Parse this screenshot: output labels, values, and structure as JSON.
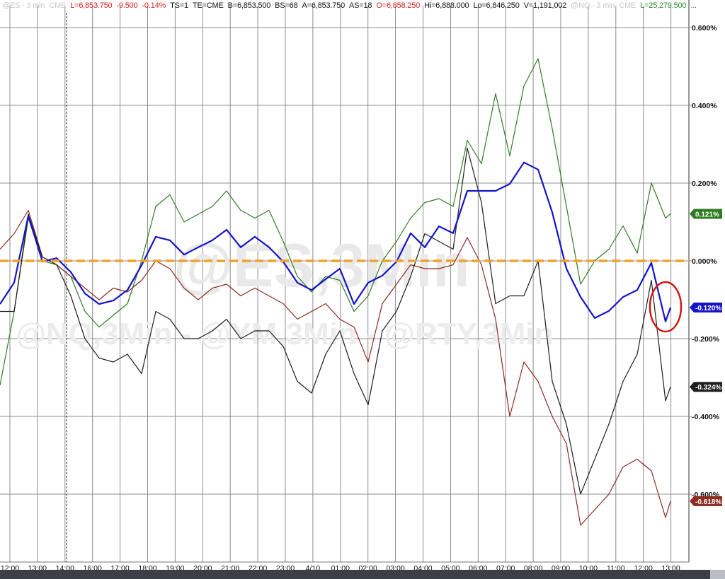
{
  "header": {
    "es_symbol": "@ES - 3 min",
    "es_exchange": "CME",
    "last": "L=6,853.750",
    "change": "-9.500",
    "change_pct": "-0.14%",
    "ts": "TS=1",
    "te": "TE=CME",
    "bid": "B=6,853.500",
    "bid_size": "BS=68",
    "ask": "A=6,853.750",
    "ask_size": "AS=18",
    "open": "O=6,858.250",
    "high": "Hi=6,888.000",
    "low": "Lo=6,846.250",
    "volume": "V=1,191,002",
    "nq_symbol": "@NQ - 3 min",
    "nq_exchange": "CME",
    "nq_last": "L=25,279.500",
    "more": "..."
  },
  "watermark": {
    "main": "@ES,3Min",
    "sub": "@NQ,3Min - @YM,3Min - @RTY,3Min"
  },
  "chart_data": {
    "type": "line",
    "x_tick_labels": [
      "12:00",
      "13:00",
      "14:00",
      "16:00",
      "17:00",
      "18:00",
      "19:00",
      "20:00",
      "21:00",
      "22:00",
      "23:00",
      "4/10",
      "01:00",
      "02:00",
      "03:00",
      "04:00",
      "05:00",
      "06:00",
      "07:00",
      "08:00",
      "09:00",
      "10:00",
      "11:00",
      "12:00",
      "13:00"
    ],
    "y_tick_labels": [
      "0.600%",
      "0.400%",
      "0.200%",
      "0.000%",
      "-0.200%",
      "-0.400%",
      "-0.600%"
    ],
    "y_ticks": [
      0.6,
      0.4,
      0.2,
      0,
      -0.2,
      -0.4,
      -0.6
    ],
    "ylim": [
      -0.72,
      0.66
    ],
    "y_unit": "%",
    "grid": true,
    "reference_line": {
      "value": 0,
      "color": "#f0a22a",
      "style": "dashed"
    },
    "session_marker_label": "14:00",
    "series": [
      {
        "color": "#2f7d22",
        "last_label": "0.121%",
        "values": [
          -0.32,
          -0.13,
          0.11,
          0,
          -0.01,
          -0.04,
          -0.13,
          -0.17,
          -0.14,
          -0.11,
          0,
          0.14,
          0.17,
          0.1,
          0.12,
          0.14,
          0.18,
          0.13,
          0.11,
          0.13,
          0.05,
          -0.04,
          -0.08,
          -0.04,
          -0.05,
          -0.13,
          -0.09,
          0,
          0.05,
          0.11,
          0.15,
          0.16,
          0.14,
          0.31,
          0.25,
          0.43,
          0.27,
          0.45,
          0.52,
          0.34,
          0.14,
          -0.06,
          0,
          0.03,
          0.09,
          0.02,
          0.2,
          0.11,
          0.121
        ]
      },
      {
        "color": "#8c2a1f",
        "last_label": "-0.618%",
        "values": [
          0.03,
          0.07,
          0.13,
          0.01,
          -0.01,
          -0.04,
          -0.07,
          -0.1,
          -0.07,
          -0.08,
          -0.05,
          0,
          -0.02,
          -0.07,
          -0.1,
          -0.07,
          -0.06,
          -0.09,
          -0.07,
          -0.09,
          -0.11,
          -0.15,
          -0.13,
          -0.11,
          -0.15,
          -0.17,
          -0.26,
          -0.11,
          -0.06,
          -0.01,
          -0.02,
          -0.02,
          -0.01,
          0.06,
          -0.01,
          -0.15,
          -0.4,
          -0.26,
          -0.31,
          -0.4,
          -0.47,
          -0.68,
          -0.64,
          -0.6,
          -0.53,
          -0.51,
          -0.54,
          -0.66,
          -0.618
        ]
      },
      {
        "color": "#1e1e1e",
        "last_label": "-0.324%",
        "values": [
          -0.13,
          -0.13,
          0.12,
          0.01,
          -0.01,
          -0.09,
          -0.2,
          -0.25,
          -0.26,
          -0.24,
          -0.29,
          -0.13,
          -0.15,
          -0.2,
          -0.2,
          -0.18,
          -0.15,
          -0.2,
          -0.18,
          -0.18,
          -0.22,
          -0.31,
          -0.34,
          -0.24,
          -0.18,
          -0.29,
          -0.37,
          -0.18,
          -0.13,
          -0.04,
          0.07,
          0.05,
          0.03,
          0.29,
          0.15,
          -0.11,
          -0.09,
          -0.09,
          0,
          -0.31,
          -0.42,
          -0.6,
          -0.51,
          -0.42,
          -0.31,
          -0.24,
          -0.05,
          -0.36,
          -0.324
        ]
      },
      {
        "color": "#1414c8",
        "last_label": "-0.120%",
        "highlighted": true,
        "values": [
          -0.111,
          -0.056,
          0.116,
          -0.002,
          0.007,
          -0.029,
          -0.084,
          -0.111,
          -0.102,
          -0.075,
          -0.011,
          0.062,
          0.053,
          0.016,
          0.035,
          0.053,
          0.08,
          0.035,
          0.062,
          0.035,
          -0.002,
          -0.056,
          -0.075,
          -0.047,
          -0.02,
          -0.111,
          -0.056,
          -0.038,
          -0.002,
          0.071,
          0.035,
          0.089,
          0.071,
          0.18,
          0.18,
          0.18,
          0.198,
          0.253,
          0.235,
          0.125,
          -0.02,
          -0.093,
          -0.147,
          -0.129,
          -0.093,
          -0.075,
          -0.005,
          -0.156,
          -0.12
        ]
      }
    ],
    "annotation": {
      "type": "circle",
      "color": "#d01818",
      "around": "latest -0.120% series values"
    }
  }
}
